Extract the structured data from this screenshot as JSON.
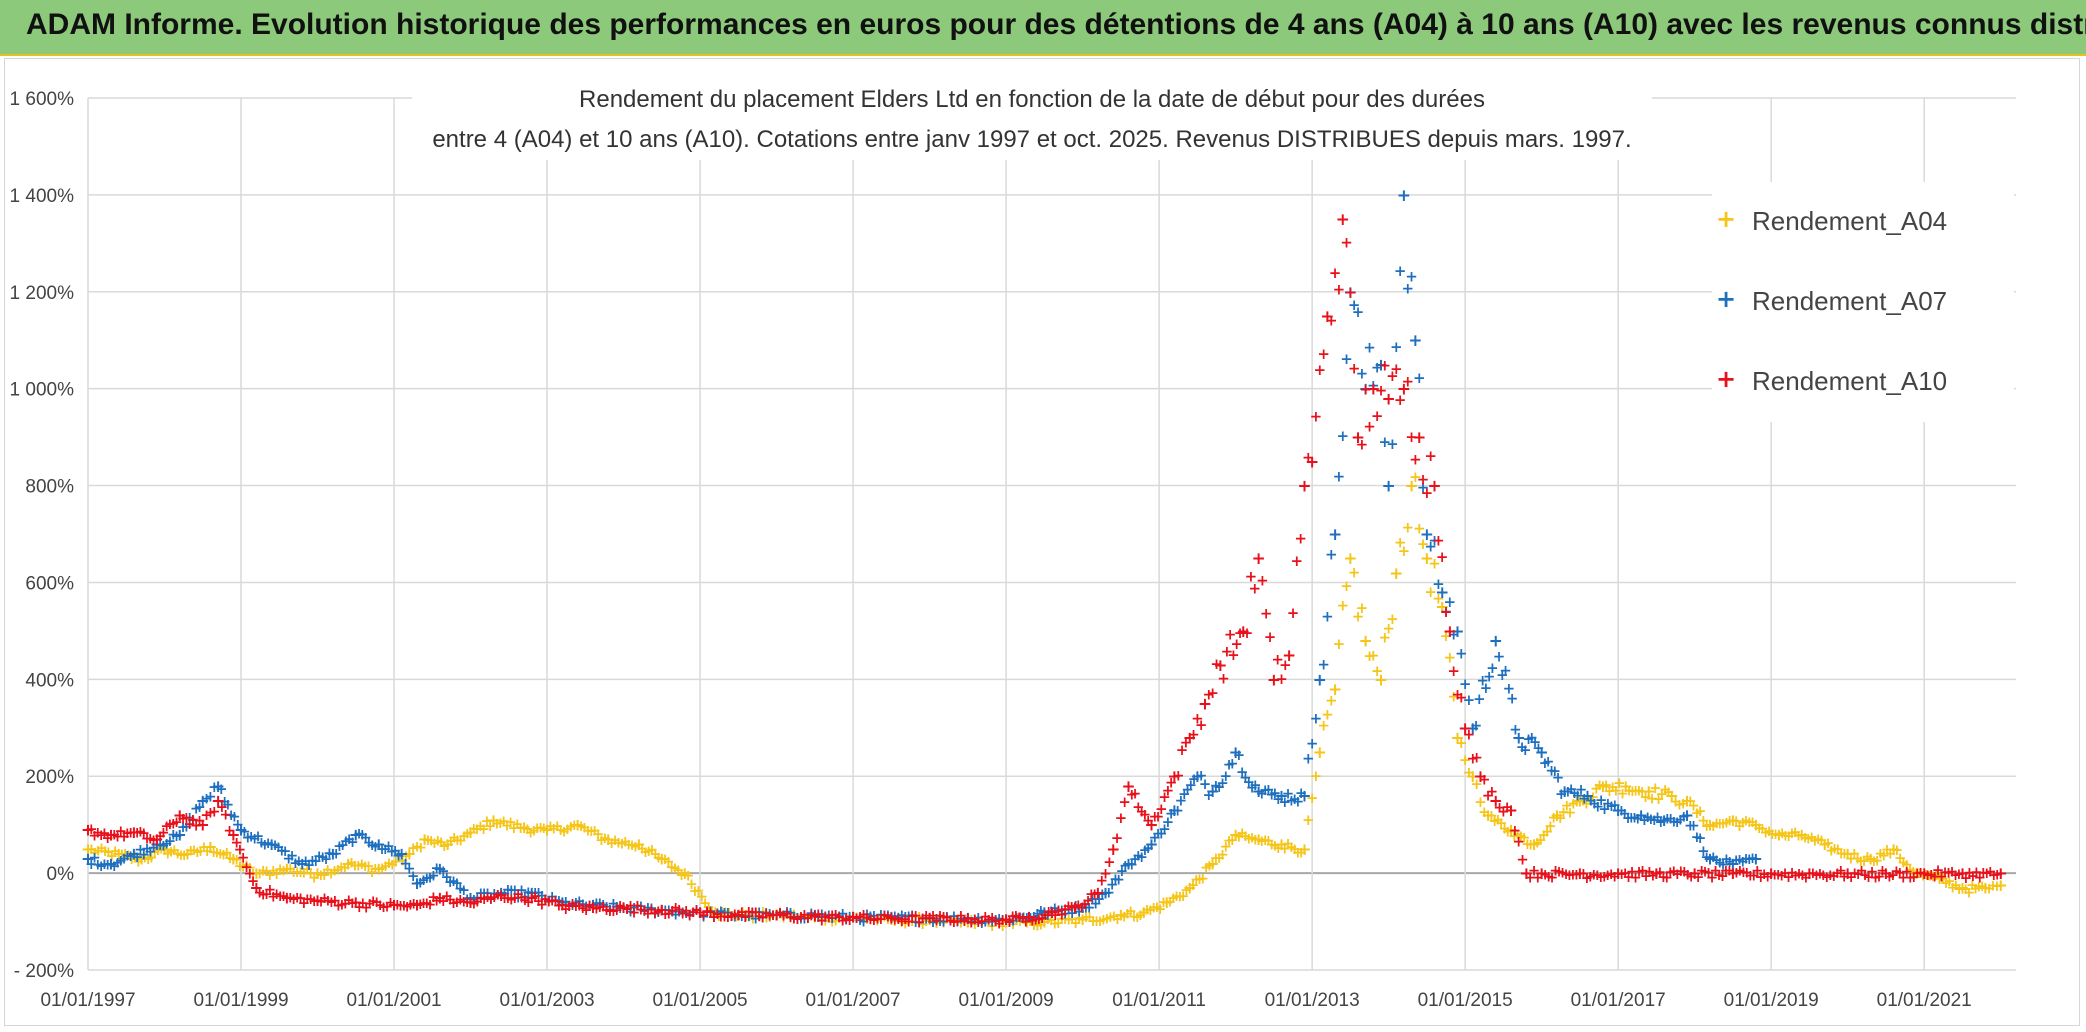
{
  "header": {
    "title": "ADAM Informe. Evolution historique des performances en euros pour des détentions de 4 ans (A04) à 10 ans (A10) avec les revenus connus distribués"
  },
  "chart_data": {
    "type": "scatter",
    "title_line1": "Rendement du placement Elders Ltd en fonction de la date de début pour des durées",
    "title_line2": "entre 4 (A04) et 10 ans (A10). Cotations entre janv 1997 et oct. 2025. Revenus DISTRIBUES depuis mars. 1997.",
    "xlabel": "",
    "ylabel": "",
    "x_range": [
      1997.0,
      2022.2
    ],
    "ylim": [
      -200,
      1600
    ],
    "y_ticks": [
      -200,
      0,
      200,
      400,
      600,
      800,
      1000,
      1200,
      1400,
      1600
    ],
    "y_tick_labels": [
      "- 200%",
      "0%",
      "200%",
      "400%",
      "600%",
      "800%",
      "1 000%",
      "1 200%",
      "1 400%",
      "1 600%"
    ],
    "x_ticks": [
      1997,
      1999,
      2001,
      2003,
      2005,
      2007,
      2009,
      2011,
      2013,
      2015,
      2017,
      2019,
      2021
    ],
    "x_tick_labels": [
      "01/01/1997",
      "01/01/1999",
      "01/01/2001",
      "01/01/2003",
      "01/01/2005",
      "01/01/2007",
      "01/01/2009",
      "01/01/2011",
      "01/01/2013",
      "01/01/2015",
      "01/01/2017",
      "01/01/2019",
      "01/01/2021"
    ],
    "grid": true,
    "legend_position": "right",
    "series": [
      {
        "name": "Rendement_A04",
        "color": "#f5c518",
        "x": [
          1997.0,
          1997.4,
          1997.7,
          1998.0,
          1998.3,
          1998.6,
          1998.9,
          1999.2,
          1999.6,
          2000.0,
          2000.4,
          2000.8,
          2001.2,
          2001.4,
          2001.7,
          2002.0,
          2002.3,
          2002.7,
          2003.0,
          2003.4,
          2003.8,
          2004.2,
          2004.5,
          2004.8,
          2005.2,
          2005.6,
          2006.0,
          2006.5,
          2007.0,
          2007.5,
          2008.0,
          2008.5,
          2009.0,
          2009.5,
          2010.0,
          2010.5,
          2010.8,
          2011.1,
          2011.4,
          2011.7,
          2012.0,
          2012.3,
          2012.6,
          2012.9,
          2013.1,
          2013.3,
          2013.5,
          2013.7,
          2013.9,
          2014.1,
          2014.3,
          2014.5,
          2014.7,
          2014.9,
          2015.1,
          2015.3,
          2015.6,
          2015.9,
          2016.2,
          2016.5,
          2016.8,
          2017.1,
          2017.4,
          2017.7,
          2017.9,
          2018.2,
          2018.5,
          2018.8,
          2019.1,
          2019.4,
          2019.7,
          2020.0,
          2020.3,
          2020.6,
          2020.9,
          2021.2,
          2021.5,
          2021.8,
          2022.0
        ],
        "values": [
          50,
          40,
          30,
          50,
          40,
          55,
          30,
          0,
          10,
          0,
          20,
          10,
          40,
          70,
          60,
          85,
          110,
          95,
          90,
          100,
          70,
          60,
          30,
          0,
          -80,
          -85,
          -85,
          -90,
          -90,
          -95,
          -95,
          -100,
          -100,
          -100,
          -95,
          -85,
          -80,
          -60,
          -30,
          20,
          80,
          70,
          60,
          50,
          250,
          380,
          650,
          480,
          400,
          620,
          800,
          650,
          550,
          280,
          200,
          120,
          90,
          60,
          120,
          150,
          180,
          180,
          170,
          160,
          150,
          100,
          110,
          100,
          80,
          80,
          60,
          40,
          30,
          50,
          0,
          -10,
          -30,
          -30,
          -25
        ]
      },
      {
        "name": "Rendement_A07",
        "color": "#1f6fbf",
        "x": [
          1997.0,
          1997.3,
          1997.6,
          1997.9,
          1998.2,
          1998.5,
          1998.7,
          1999.0,
          1999.4,
          1999.8,
          2000.2,
          2000.5,
          2000.8,
          2001.1,
          2001.3,
          2001.6,
          2002.0,
          2002.4,
          2002.8,
          2003.2,
          2003.6,
          2004.0,
          2004.5,
          2005.0,
          2005.5,
          2006.0,
          2006.5,
          2007.0,
          2007.5,
          2008.0,
          2008.5,
          2009.0,
          2009.5,
          2010.0,
          2010.3,
          2010.6,
          2010.9,
          2011.2,
          2011.5,
          2011.7,
          2012.0,
          2012.3,
          2012.6,
          2012.9,
          2013.1,
          2013.3,
          2013.5,
          2013.7,
          2013.9,
          2014.0,
          2014.2,
          2014.35,
          2014.5,
          2014.7,
          2014.9,
          2015.1,
          2015.4,
          2015.7,
          2016.0,
          2016.3,
          2016.6,
          2017.0,
          2017.3,
          2017.6,
          2017.9,
          2018.2,
          2018.5,
          2018.8
        ],
        "values": [
          30,
          20,
          40,
          60,
          80,
          150,
          180,
          90,
          60,
          20,
          40,
          80,
          60,
          40,
          -20,
          10,
          -50,
          -40,
          -40,
          -60,
          -65,
          -70,
          -75,
          -80,
          -85,
          -85,
          -85,
          -90,
          -90,
          -92,
          -92,
          -95,
          -80,
          -70,
          -40,
          20,
          60,
          130,
          200,
          170,
          250,
          170,
          160,
          160,
          400,
          700,
          1200,
          1000,
          1050,
          800,
          1400,
          1100,
          700,
          580,
          500,
          300,
          480,
          280,
          250,
          170,
          160,
          130,
          120,
          110,
          120,
          30,
          20,
          30
        ]
      },
      {
        "name": "Rendement_A10",
        "color": "#e8101a",
        "x": [
          1997.0,
          1997.3,
          1997.6,
          1997.9,
          1998.2,
          1998.5,
          1998.7,
          1998.9,
          1999.2,
          1999.6,
          2000.0,
          2000.5,
          2001.0,
          2001.3,
          2001.6,
          2002.0,
          2002.4,
          2002.8,
          2003.2,
          2003.6,
          2004.0,
          2004.5,
          2005.0,
          2005.5,
          2006.0,
          2006.5,
          2007.0,
          2007.5,
          2008.0,
          2008.5,
          2009.0,
          2009.3,
          2009.6,
          2009.9,
          2010.2,
          2010.4,
          2010.6,
          2010.9,
          2011.2,
          2011.4,
          2011.6,
          2011.8,
          2012.1,
          2012.3,
          2012.5,
          2012.7,
          2012.9,
          2013.0,
          2013.2,
          2013.4,
          2013.6,
          2013.8,
          2014.0,
          2014.2,
          2014.4,
          2014.6,
          2014.8,
          2015.0,
          2015.2,
          2015.4,
          2015.6,
          2015.8,
          2016.0,
          2016.5,
          2017.0,
          2017.5,
          2018.0,
          2018.5,
          2019.0,
          2019.5,
          2020.0,
          2020.5,
          2021.0,
          2021.5,
          2022.0
        ],
        "values": [
          90,
          80,
          85,
          70,
          120,
          100,
          150,
          80,
          -30,
          -50,
          -55,
          -60,
          -65,
          -65,
          -50,
          -60,
          -45,
          -50,
          -65,
          -70,
          -70,
          -75,
          -80,
          -85,
          -85,
          -88,
          -90,
          -92,
          -92,
          -93,
          -95,
          -90,
          -80,
          -70,
          -40,
          50,
          180,
          100,
          200,
          280,
          350,
          430,
          500,
          650,
          400,
          450,
          800,
          850,
          1150,
          1350,
          900,
          1000,
          980,
          1000,
          900,
          800,
          500,
          300,
          200,
          150,
          130,
          0,
          0,
          0,
          0,
          0,
          0,
          0,
          0,
          0,
          0,
          0,
          0,
          0,
          0
        ]
      }
    ]
  }
}
